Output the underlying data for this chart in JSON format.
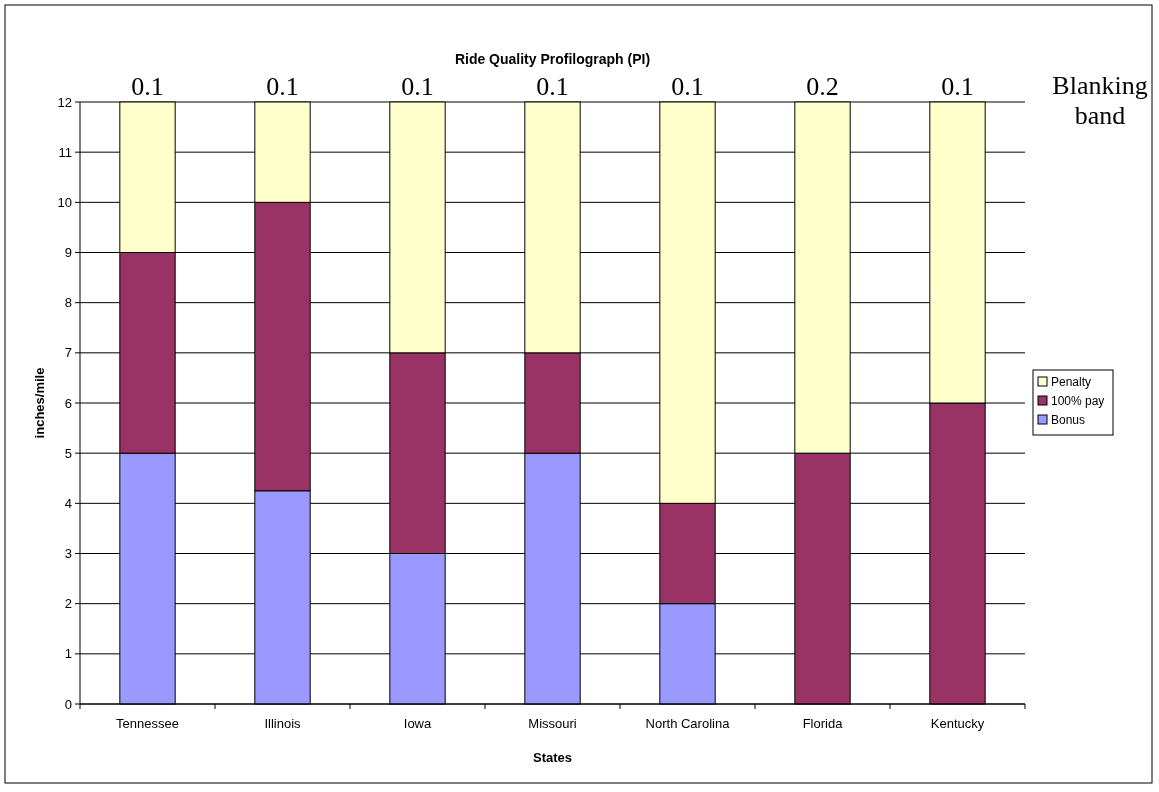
{
  "chart_data": {
    "type": "bar",
    "stacked": true,
    "title": "Ride Quality Profilograph (PI)",
    "xlabel": "States",
    "ylabel": "inches/mile",
    "categories": [
      "Tennessee",
      "Illinois",
      "Iowa",
      "Missouri",
      "North Carolina",
      "Florida",
      "Kentucky"
    ],
    "series": [
      {
        "name": "Bonus",
        "color": "#9999ff",
        "values": [
          5,
          4.25,
          3,
          5,
          2,
          0,
          0
        ]
      },
      {
        "name": "100% pay",
        "color": "#993366",
        "values": [
          4,
          5.75,
          4,
          2,
          2,
          5,
          6
        ]
      },
      {
        "name": "Penalty",
        "color": "#ffffcc",
        "values": [
          3,
          2,
          5,
          5,
          8,
          7,
          6
        ]
      }
    ],
    "annotations": [
      "0.1",
      "0.1",
      "0.1",
      "0.1",
      "0.1",
      "0.2",
      "0.1",
      "Blanking band"
    ],
    "ylim": [
      0,
      12
    ],
    "yticks": [
      0,
      1,
      2,
      3,
      4,
      5,
      6,
      7,
      8,
      9,
      10,
      11,
      12
    ],
    "grid": "y",
    "legend": "right"
  }
}
